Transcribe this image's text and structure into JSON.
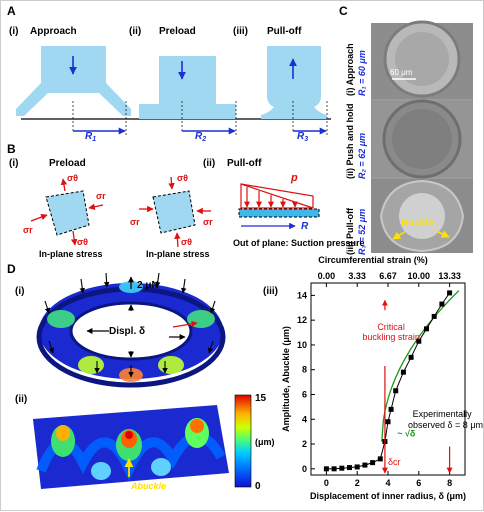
{
  "panel_A": {
    "label": "A",
    "sub": [
      {
        "num": "(i)",
        "title": "Approach",
        "r": "R",
        "rsub": "1"
      },
      {
        "num": "(ii)",
        "title": "Preload",
        "r": "R",
        "rsub": "2"
      },
      {
        "num": "(iii)",
        "title": "Pull-off",
        "r": "R",
        "rsub": "3"
      }
    ]
  },
  "panel_B": {
    "label": "B",
    "i_num": "(i)",
    "i_title": "Preload",
    "ii_num": "(ii)",
    "ii_title": "Pull-off",
    "caption_left": "In-plane stress",
    "caption_mid": "In-plane stress",
    "caption_right": "Out of plane: Suction pressure",
    "sigma_theta": "σθ",
    "sigma_r": "σr",
    "p": "p",
    "R": "R"
  },
  "panel_C": {
    "label": "C",
    "scale": "60 μm",
    "rows": [
      {
        "num": "(i)",
        "title": "Approach",
        "r": "R₁ = 60 μm"
      },
      {
        "num": "(ii)",
        "title": "Push and hold",
        "r": "R₂ = 62 μm"
      },
      {
        "num": "(iii)",
        "title": "Pull-off",
        "r": "R₃ = 52 μm"
      }
    ],
    "buckle": "Buckle"
  },
  "panel_D": {
    "label": "D",
    "i_num": "(i)",
    "force": "2 μN",
    "displ": "Displ. δ",
    "ii_num": "(ii)",
    "abuckle": "Abuckle",
    "colorbar": {
      "max": "15",
      "min": "0",
      "unit": "(μm)",
      "colors": [
        "#1010d0",
        "#0060ff",
        "#00c0ff",
        "#40ff80",
        "#c0ff00",
        "#ffd000",
        "#ff6000",
        "#e00000"
      ]
    }
  },
  "chart_data": {
    "type": "line",
    "panel_num": "(iii)",
    "top_xlabel": "Circumferential strain (%)",
    "top_ticks": [
      "0.00",
      "3.33",
      "6.67",
      "10.00",
      "13.33"
    ],
    "xlabel": "Displacement of inner radius, δ (μm)",
    "ylabel": "Amplitude, Abuckle (μm)",
    "xlim": [
      -1,
      9
    ],
    "ylim": [
      -0.5,
      15
    ],
    "xticks": [
      0,
      2,
      4,
      6,
      8
    ],
    "yticks": [
      0,
      2,
      4,
      6,
      8,
      10,
      12,
      14
    ],
    "series": [
      {
        "values_x": [
          0,
          0.5,
          1,
          1.5,
          2,
          2.5,
          3,
          3.5,
          3.8,
          4.0,
          4.2,
          4.5,
          5.0,
          5.5,
          6.0,
          6.5,
          7.0,
          7.5,
          8.0
        ],
        "values_y": [
          0,
          0,
          0.05,
          0.1,
          0.15,
          0.3,
          0.5,
          0.8,
          2.2,
          3.8,
          4.8,
          6.3,
          7.8,
          9.0,
          10.3,
          11.3,
          12.3,
          13.3,
          14.2
        ]
      }
    ],
    "annotations": {
      "critical": "Critical buckling strain",
      "delta_cr": "δcr",
      "sqrt": "~ √δ",
      "experiment": "Experimentally observed δ = 8 μm"
    }
  }
}
